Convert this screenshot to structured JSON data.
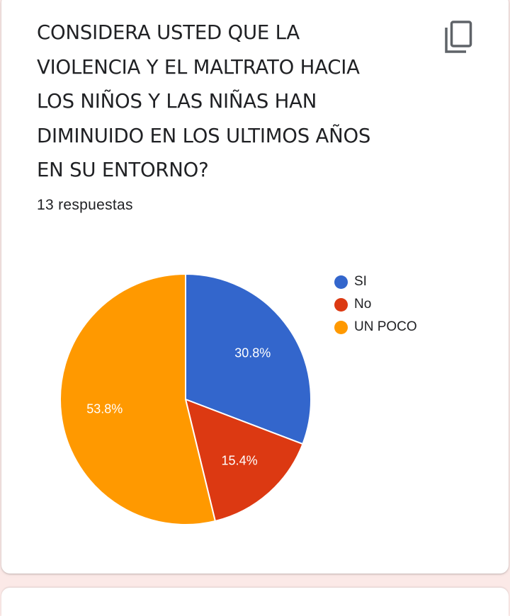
{
  "question": {
    "lines": [
      "CONSIDERA USTED QUE LA",
      "VIOLENCIA Y EL MALTRATO HACIA",
      "LOS NIÑOS Y LAS NIÑAS HAN",
      "DIMINUIDO EN LOS ULTIMOS AÑOS",
      "EN SU ENTORNO?"
    ]
  },
  "response_count": "13 respuestas",
  "copy_icon": "copy-icon",
  "chart_data": {
    "type": "pie",
    "categories": [
      "SI",
      "No",
      "UN POCO"
    ],
    "values": [
      30.8,
      15.4,
      53.8
    ],
    "data_labels": [
      "30.8%",
      "15.4%",
      "53.8%"
    ],
    "colors": [
      "#3366cc",
      "#dc3912",
      "#ff9900"
    ],
    "legend_position": "right"
  }
}
